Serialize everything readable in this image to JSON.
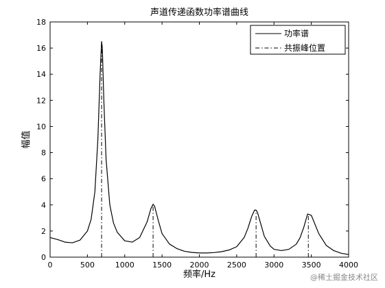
{
  "chart_data": {
    "type": "line",
    "title": "声道传递函数功率谱曲线",
    "xlabel": "频率/Hz",
    "ylabel": "幅值",
    "xlim": [
      0,
      4000
    ],
    "ylim": [
      0,
      18
    ],
    "xticks": [
      0,
      500,
      1000,
      1500,
      2000,
      2500,
      3000,
      3500,
      4000
    ],
    "yticks": [
      0,
      2,
      4,
      6,
      8,
      10,
      12,
      14,
      16,
      18
    ],
    "grid": false,
    "legend_position": "top-right",
    "series": [
      {
        "name": "功率谱",
        "style": "solid",
        "x": [
          0,
          100,
          200,
          300,
          400,
          500,
          550,
          600,
          640,
          670,
          690,
          700,
          720,
          750,
          800,
          850,
          900,
          1000,
          1100,
          1200,
          1300,
          1350,
          1380,
          1400,
          1450,
          1500,
          1600,
          1700,
          1800,
          1900,
          2000,
          2100,
          2200,
          2300,
          2400,
          2500,
          2600,
          2650,
          2700,
          2740,
          2760,
          2780,
          2820,
          2870,
          2950,
          3000,
          3100,
          3200,
          3300,
          3350,
          3400,
          3450,
          3500,
          3600,
          3700,
          3800,
          3900,
          4000
        ],
        "y": [
          1.5,
          1.35,
          1.15,
          1.1,
          1.3,
          2.0,
          2.9,
          5.0,
          9.0,
          14.0,
          16.5,
          16.0,
          12.0,
          7.5,
          4.0,
          2.6,
          1.9,
          1.25,
          1.15,
          1.5,
          2.7,
          3.7,
          4.05,
          3.9,
          2.8,
          1.8,
          1.0,
          0.65,
          0.45,
          0.36,
          0.32,
          0.32,
          0.35,
          0.42,
          0.55,
          0.8,
          1.5,
          2.2,
          3.1,
          3.6,
          3.6,
          3.4,
          2.6,
          1.6,
          0.85,
          0.6,
          0.5,
          0.6,
          1.0,
          1.5,
          2.3,
          3.3,
          3.2,
          1.8,
          0.9,
          0.5,
          0.3,
          0.2
        ]
      },
      {
        "name": "共振峰位置",
        "style": "dashdot",
        "positions": [
          690,
          1380,
          2760,
          3460
        ],
        "heights": [
          16.5,
          4.05,
          3.6,
          3.3
        ]
      }
    ]
  },
  "watermark": "@稀土掘金技术社区"
}
